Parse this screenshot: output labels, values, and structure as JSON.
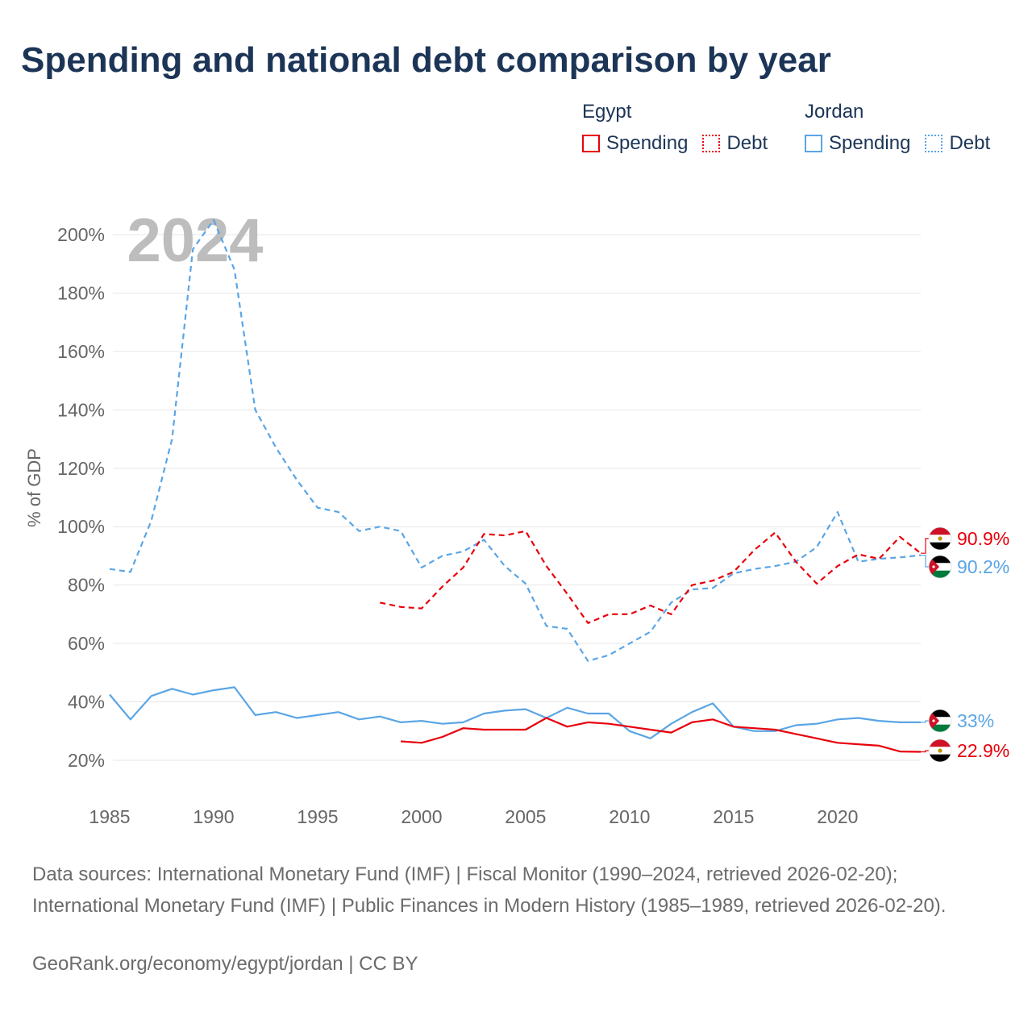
{
  "title": "Spending and national debt comparison by year",
  "legend": {
    "groups": [
      {
        "name": "Egypt",
        "items": [
          "Spending",
          "Debt"
        ]
      },
      {
        "name": "Jordan",
        "items": [
          "Spending",
          "Debt"
        ]
      }
    ]
  },
  "colors": {
    "egypt": "#e8000b",
    "jordan": "#5aa5e6"
  },
  "chart_data": {
    "type": "line",
    "ylabel": "% of GDP",
    "ylim": [
      10,
      210
    ],
    "xlim": [
      1985,
      2024
    ],
    "yticks": [
      20,
      40,
      60,
      80,
      100,
      120,
      140,
      160,
      180,
      200
    ],
    "ytick_labels": [
      "20%",
      "40%",
      "60%",
      "80%",
      "100%",
      "120%",
      "140%",
      "160%",
      "180%",
      "200%"
    ],
    "xticks": [
      1985,
      1990,
      1995,
      2000,
      2005,
      2010,
      2015,
      2020
    ],
    "xtick_labels": [
      "1985",
      "1990",
      "1995",
      "2000",
      "2005",
      "2010",
      "2015",
      "2020"
    ],
    "year_annotation": "2024",
    "series": [
      {
        "name": "Jordan Debt",
        "country": "Jordan",
        "metric": "Debt",
        "style": "dashed",
        "x": [
          1985,
          1986,
          1987,
          1988,
          1989,
          1990,
          1991,
          1992,
          1993,
          1994,
          1995,
          1996,
          1997,
          1998,
          1999,
          2000,
          2001,
          2002,
          2003,
          2004,
          2005,
          2006,
          2007,
          2008,
          2009,
          2010,
          2011,
          2012,
          2013,
          2014,
          2015,
          2016,
          2017,
          2018,
          2019,
          2020,
          2021,
          2022,
          2023,
          2024
        ],
        "values": [
          85.5,
          84.5,
          102,
          130,
          195,
          205,
          188,
          140,
          127,
          116,
          106.5,
          105,
          98.5,
          100,
          98.5,
          86,
          90,
          91.5,
          95.5,
          86.5,
          80.5,
          66,
          65,
          54,
          56,
          60,
          64,
          74,
          78.5,
          79,
          84,
          85.5,
          86.5,
          88,
          93,
          105,
          88,
          89,
          89.5,
          90.2
        ],
        "end_label": "90.2%"
      },
      {
        "name": "Egypt Debt",
        "country": "Egypt",
        "metric": "Debt",
        "style": "dashed",
        "x": [
          1998,
          1999,
          2000,
          2001,
          2002,
          2003,
          2004,
          2005,
          2006,
          2007,
          2008,
          2009,
          2010,
          2011,
          2012,
          2013,
          2014,
          2015,
          2016,
          2017,
          2018,
          2019,
          2020,
          2021,
          2022,
          2023,
          2024
        ],
        "values": [
          74,
          72.5,
          72,
          79.5,
          86,
          97.5,
          97,
          98.5,
          86.5,
          77,
          67,
          70,
          70,
          73,
          70,
          80,
          81.5,
          84.5,
          92,
          98,
          88,
          80.5,
          86.5,
          90.5,
          89,
          96.5,
          90.9
        ],
        "end_label": "90.9%"
      },
      {
        "name": "Jordan Spending",
        "country": "Jordan",
        "metric": "Spending",
        "style": "solid",
        "x": [
          1985,
          1986,
          1987,
          1988,
          1989,
          1990,
          1991,
          1992,
          1993,
          1994,
          1995,
          1996,
          1997,
          1998,
          1999,
          2000,
          2001,
          2002,
          2003,
          2004,
          2005,
          2006,
          2007,
          2008,
          2009,
          2010,
          2011,
          2012,
          2013,
          2014,
          2015,
          2016,
          2017,
          2018,
          2019,
          2020,
          2021,
          2022,
          2023,
          2024
        ],
        "values": [
          42.5,
          34,
          42,
          44.5,
          42.5,
          44,
          45,
          35.5,
          36.5,
          34.5,
          35.5,
          36.5,
          34,
          35,
          33,
          33.5,
          32.5,
          33,
          36,
          37,
          37.5,
          34.5,
          38,
          36,
          36,
          30,
          27.5,
          32.5,
          36.5,
          39.5,
          31.5,
          30,
          30,
          32,
          32.5,
          34,
          34.5,
          33.5,
          33,
          33
        ],
        "end_label": "33%"
      },
      {
        "name": "Egypt Spending",
        "country": "Egypt",
        "metric": "Spending",
        "style": "solid",
        "x": [
          1999,
          2000,
          2001,
          2002,
          2003,
          2004,
          2005,
          2006,
          2007,
          2008,
          2009,
          2010,
          2011,
          2012,
          2013,
          2014,
          2015,
          2016,
          2017,
          2018,
          2019,
          2020,
          2021,
          2022,
          2023,
          2024
        ],
        "values": [
          26.5,
          26,
          28,
          31,
          30.5,
          30.5,
          30.5,
          34.5,
          31.5,
          33,
          32.5,
          31.5,
          30.5,
          29.5,
          33,
          34,
          31.5,
          31,
          30.5,
          29,
          27.5,
          26,
          25.5,
          25,
          23,
          22.9
        ],
        "end_label": "22.9%"
      }
    ]
  },
  "source_text": "Data sources: International Monetary Fund (IMF) | Fiscal Monitor (1990–2024, retrieved 2026-02-20); International Monetary Fund (IMF) | Public Finances in Modern History (1985–1989, retrieved 2026-02-20).",
  "attribution": "GeoRank.org/economy/egypt/jordan | CC BY"
}
